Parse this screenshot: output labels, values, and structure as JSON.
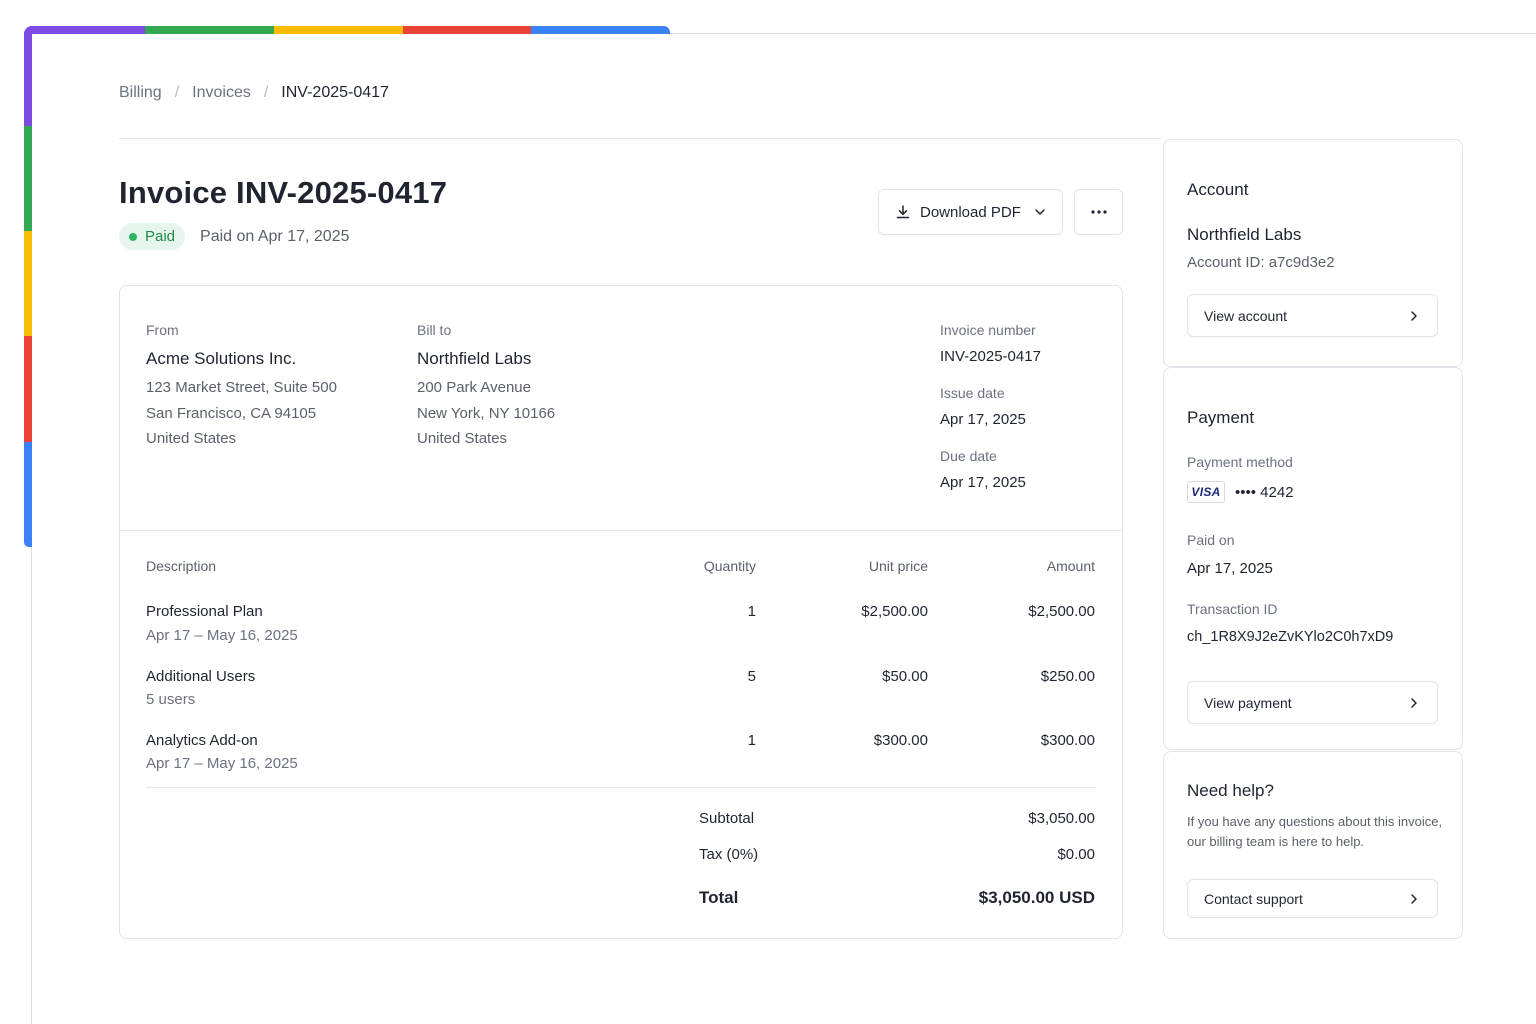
{
  "theme": {
    "accent_colors": [
      "#7c4be2",
      "#33a853",
      "#fbbc05",
      "#ea4335",
      "#3b82f6"
    ],
    "paid_green": "#2fb463"
  },
  "breadcrumb": {
    "items": [
      "Billing",
      "Invoices"
    ],
    "current": "INV-2025-0417",
    "separator": "/"
  },
  "header": {
    "title": "Invoice INV-2025-0417",
    "status_badge": "Paid",
    "paid_on": "Paid on Apr 17, 2025",
    "download_label": "Download PDF",
    "more_icon": "more-horizontal-icon"
  },
  "invoice": {
    "from": {
      "label": "From",
      "name": "Acme Solutions Inc.",
      "lines": [
        "123 Market Street, Suite 500",
        "San Francisco, CA 94105",
        "United States"
      ]
    },
    "bill_to": {
      "label": "Bill to",
      "name": "Northfield Labs",
      "lines": [
        "200 Park Avenue",
        "New York, NY 10166",
        "United States"
      ]
    },
    "meta": [
      {
        "label": "Invoice number",
        "value": "INV-2025-0417"
      },
      {
        "label": "Issue date",
        "value": "Apr 17, 2025"
      },
      {
        "label": "Due date",
        "value": "Apr 17, 2025"
      }
    ],
    "columns": [
      "Description",
      "Quantity",
      "Unit price",
      "Amount"
    ],
    "items": [
      {
        "name": "Professional Plan",
        "sub": "Apr 17 – May 16, 2025",
        "qty": "1",
        "unit": "$2,500.00",
        "amount": "$2,500.00"
      },
      {
        "name": "Additional Users",
        "sub": "5 users",
        "qty": "5",
        "unit": "$50.00",
        "amount": "$250.00"
      },
      {
        "name": "Analytics Add-on",
        "sub": "Apr 17 – May 16, 2025",
        "qty": "1",
        "unit": "$300.00",
        "amount": "$300.00"
      }
    ],
    "totals": {
      "subtotal_label": "Subtotal",
      "subtotal": "$3,050.00",
      "tax_label": "Tax (0%)",
      "tax": "$0.00",
      "total_label": "Total",
      "total": "$3,050.00 USD"
    }
  },
  "account": {
    "title": "Account",
    "name": "Northfield Labs",
    "account_id": "Account ID: a7c9d3e2",
    "button": "View account"
  },
  "payment": {
    "title": "Payment",
    "method_label": "Payment method",
    "card_brand": "VISA",
    "card_mask": "•••• 4242",
    "paid_on_label": "Paid on",
    "paid_on": "Apr 17, 2025",
    "txn_label": "Transaction ID",
    "txn_id": "ch_1R8X9J2eZvKYlo2C0h7xD9",
    "button": "View payment"
  },
  "help": {
    "title": "Need help?",
    "text": "If you have any questions about this invoice, our billing team is here to help.",
    "button": "Contact support"
  }
}
